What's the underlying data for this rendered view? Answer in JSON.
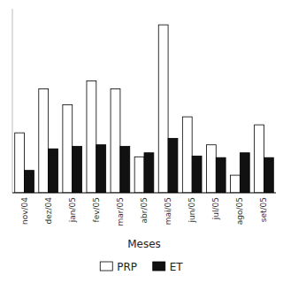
{
  "chart_data": {
    "type": "bar",
    "categories": [
      "nov/04",
      "dez/04",
      "jan/05",
      "fev/05",
      "mar/05",
      "abr/05",
      "mai/05",
      "jun/05",
      "jul/05",
      "ago/05",
      "set/05"
    ],
    "series": [
      {
        "name": "PRP",
        "color": "#ffffff",
        "values": [
          75,
          130,
          110,
          140,
          130,
          45,
          210,
          95,
          60,
          22,
          85
        ]
      },
      {
        "name": "ET",
        "color": "#111111",
        "values": [
          28,
          55,
          58,
          60,
          58,
          50,
          68,
          46,
          44,
          50,
          44
        ]
      }
    ],
    "xlabel": "Meses",
    "ylim": [
      0,
      230
    ],
    "tick_labels": "x",
    "grid": false,
    "legend": "bottom"
  }
}
